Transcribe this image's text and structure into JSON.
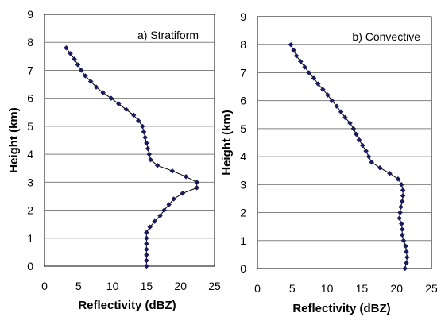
{
  "chart_data": [
    {
      "type": "line",
      "title": "a) Stratiform",
      "xlabel": "Reflectivity (dBZ)",
      "ylabel": "Height (km)",
      "xlim": [
        0,
        25
      ],
      "ylim": [
        0,
        9
      ],
      "xticks": [
        "0",
        "5",
        "10",
        "15",
        "20",
        "25"
      ],
      "yticks": [
        "0",
        "1",
        "2",
        "3",
        "4",
        "5",
        "6",
        "7",
        "8",
        "9"
      ],
      "grid": "horizontal",
      "line_color": "#000000",
      "marker_color": "#1a1a5e",
      "series": [
        {
          "x": [
            15.0,
            15.0,
            15.0,
            15.0,
            15.0,
            15.0,
            15.0,
            15.5,
            16.2,
            17.0,
            17.6,
            18.3,
            19.0,
            20.3,
            22.4,
            22.4,
            20.8,
            18.8,
            16.6,
            15.6,
            15.4,
            15.2,
            15.0,
            14.8,
            14.6,
            14.4,
            13.8,
            13.1,
            12.0,
            10.9,
            9.8,
            8.6,
            7.6,
            6.8,
            6.0,
            5.4,
            4.9,
            4.4,
            3.8,
            3.2
          ],
          "y": [
            0.0,
            0.2,
            0.4,
            0.6,
            0.8,
            1.0,
            1.2,
            1.4,
            1.6,
            1.8,
            2.0,
            2.2,
            2.4,
            2.6,
            2.8,
            3.0,
            3.2,
            3.4,
            3.6,
            3.8,
            4.0,
            4.2,
            4.4,
            4.6,
            4.8,
            5.0,
            5.2,
            5.4,
            5.6,
            5.8,
            6.0,
            6.2,
            6.4,
            6.6,
            6.8,
            7.0,
            7.2,
            7.4,
            7.6,
            7.8
          ]
        }
      ]
    },
    {
      "type": "line",
      "title": "b) Convective",
      "xlabel": "Reflectivity (dBZ)",
      "ylabel": "Height (km)",
      "xlim": [
        0,
        25
      ],
      "ylim": [
        0,
        9
      ],
      "xticks": [
        "0",
        "5",
        "10",
        "15",
        "20",
        "25"
      ],
      "yticks": [
        "0",
        "1",
        "2",
        "3",
        "4",
        "5",
        "6",
        "7",
        "8",
        "9"
      ],
      "grid": "horizontal",
      "line_color": "#000000",
      "marker_color": "#1a1a5e",
      "series": [
        {
          "x": [
            21.2,
            21.4,
            21.5,
            21.4,
            21.3,
            21.0,
            20.8,
            20.8,
            20.7,
            20.4,
            20.5,
            20.6,
            20.8,
            20.9,
            20.9,
            20.7,
            20.2,
            19.0,
            17.6,
            16.4,
            16.0,
            15.6,
            15.1,
            14.6,
            14.2,
            13.8,
            13.3,
            12.6,
            12.0,
            11.4,
            10.7,
            10.1,
            9.4,
            8.7,
            8.1,
            7.4,
            6.8,
            6.2,
            5.6,
            5.2,
            4.8
          ],
          "y": [
            0.0,
            0.2,
            0.4,
            0.6,
            0.8,
            1.0,
            1.2,
            1.4,
            1.6,
            1.8,
            2.0,
            2.2,
            2.4,
            2.6,
            2.8,
            3.0,
            3.2,
            3.4,
            3.6,
            3.8,
            4.0,
            4.2,
            4.4,
            4.6,
            4.8,
            5.0,
            5.2,
            5.4,
            5.6,
            5.8,
            6.0,
            6.2,
            6.4,
            6.6,
            6.8,
            7.0,
            7.2,
            7.4,
            7.6,
            7.8,
            8.0
          ]
        }
      ]
    }
  ]
}
